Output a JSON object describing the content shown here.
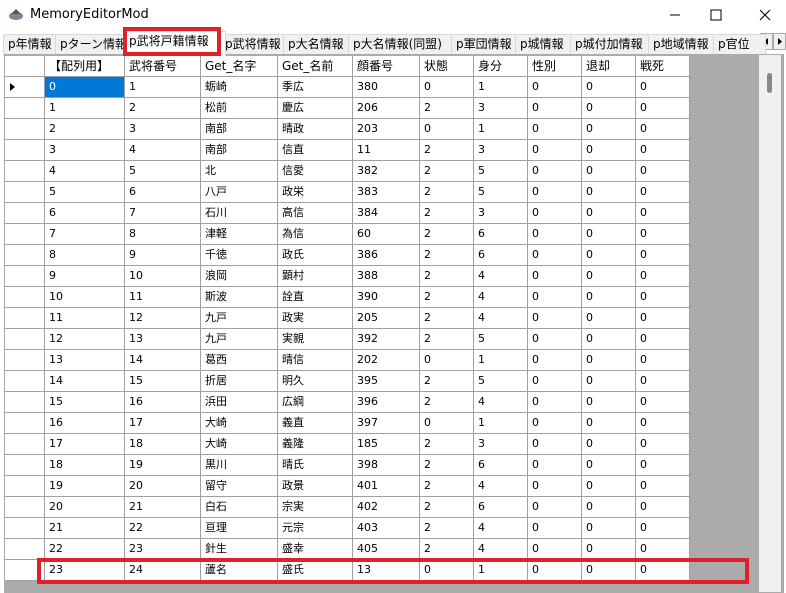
{
  "window": {
    "title": "MemoryEditorMod"
  },
  "tabs": [
    "p年情報",
    "pターン情報",
    "p武将戸籍情報",
    "p武将情報",
    "p大名情報",
    "p大名情報(同盟)",
    "p軍団情報",
    "p城情報",
    "p城付加情報",
    "p地域情報",
    "p官位"
  ],
  "grid": {
    "columns": [
      "【配列用】",
      "武将番号",
      "Get_名字",
      "Get_名前",
      "顔番号",
      "状態",
      "身分",
      "性別",
      "退却",
      "戦死"
    ],
    "rows": [
      [
        0,
        1,
        "蛎崎",
        "季広",
        380,
        0,
        1,
        0,
        0,
        0
      ],
      [
        1,
        2,
        "松前",
        "慶広",
        206,
        2,
        3,
        0,
        0,
        0
      ],
      [
        2,
        3,
        "南部",
        "晴政",
        203,
        0,
        1,
        0,
        0,
        0
      ],
      [
        3,
        4,
        "南部",
        "信直",
        11,
        2,
        3,
        0,
        0,
        0
      ],
      [
        4,
        5,
        "北",
        "信愛",
        382,
        2,
        5,
        0,
        0,
        0
      ],
      [
        5,
        6,
        "八戸",
        "政栄",
        383,
        2,
        5,
        0,
        0,
        0
      ],
      [
        6,
        7,
        "石川",
        "高信",
        384,
        2,
        3,
        0,
        0,
        0
      ],
      [
        7,
        8,
        "津軽",
        "為信",
        60,
        2,
        6,
        0,
        0,
        0
      ],
      [
        8,
        9,
        "千徳",
        "政氏",
        386,
        2,
        6,
        0,
        0,
        0
      ],
      [
        9,
        10,
        "浪岡",
        "顕村",
        388,
        2,
        4,
        0,
        0,
        0
      ],
      [
        10,
        11,
        "斯波",
        "詮直",
        390,
        2,
        4,
        0,
        0,
        0
      ],
      [
        11,
        12,
        "九戸",
        "政実",
        205,
        2,
        4,
        0,
        0,
        0
      ],
      [
        12,
        13,
        "九戸",
        "実親",
        392,
        2,
        5,
        0,
        0,
        0
      ],
      [
        13,
        14,
        "葛西",
        "晴信",
        202,
        0,
        1,
        0,
        0,
        0
      ],
      [
        14,
        15,
        "折居",
        "明久",
        395,
        2,
        5,
        0,
        0,
        0
      ],
      [
        15,
        16,
        "浜田",
        "広綱",
        396,
        2,
        4,
        0,
        0,
        0
      ],
      [
        16,
        17,
        "大崎",
        "義直",
        397,
        0,
        1,
        0,
        0,
        0
      ],
      [
        17,
        18,
        "大崎",
        "義隆",
        185,
        2,
        3,
        0,
        0,
        0
      ],
      [
        18,
        19,
        "黒川",
        "晴氏",
        398,
        2,
        6,
        0,
        0,
        0
      ],
      [
        19,
        20,
        "留守",
        "政景",
        401,
        2,
        4,
        0,
        0,
        0
      ],
      [
        20,
        21,
        "白石",
        "宗実",
        402,
        2,
        6,
        0,
        0,
        0
      ],
      [
        21,
        22,
        "亘理",
        "元宗",
        403,
        2,
        4,
        0,
        0,
        0
      ],
      [
        22,
        23,
        "針生",
        "盛幸",
        405,
        2,
        4,
        0,
        0,
        0
      ],
      [
        23,
        24,
        "蘆名",
        "盛氏",
        13,
        0,
        1,
        0,
        0,
        0
      ]
    ]
  }
}
